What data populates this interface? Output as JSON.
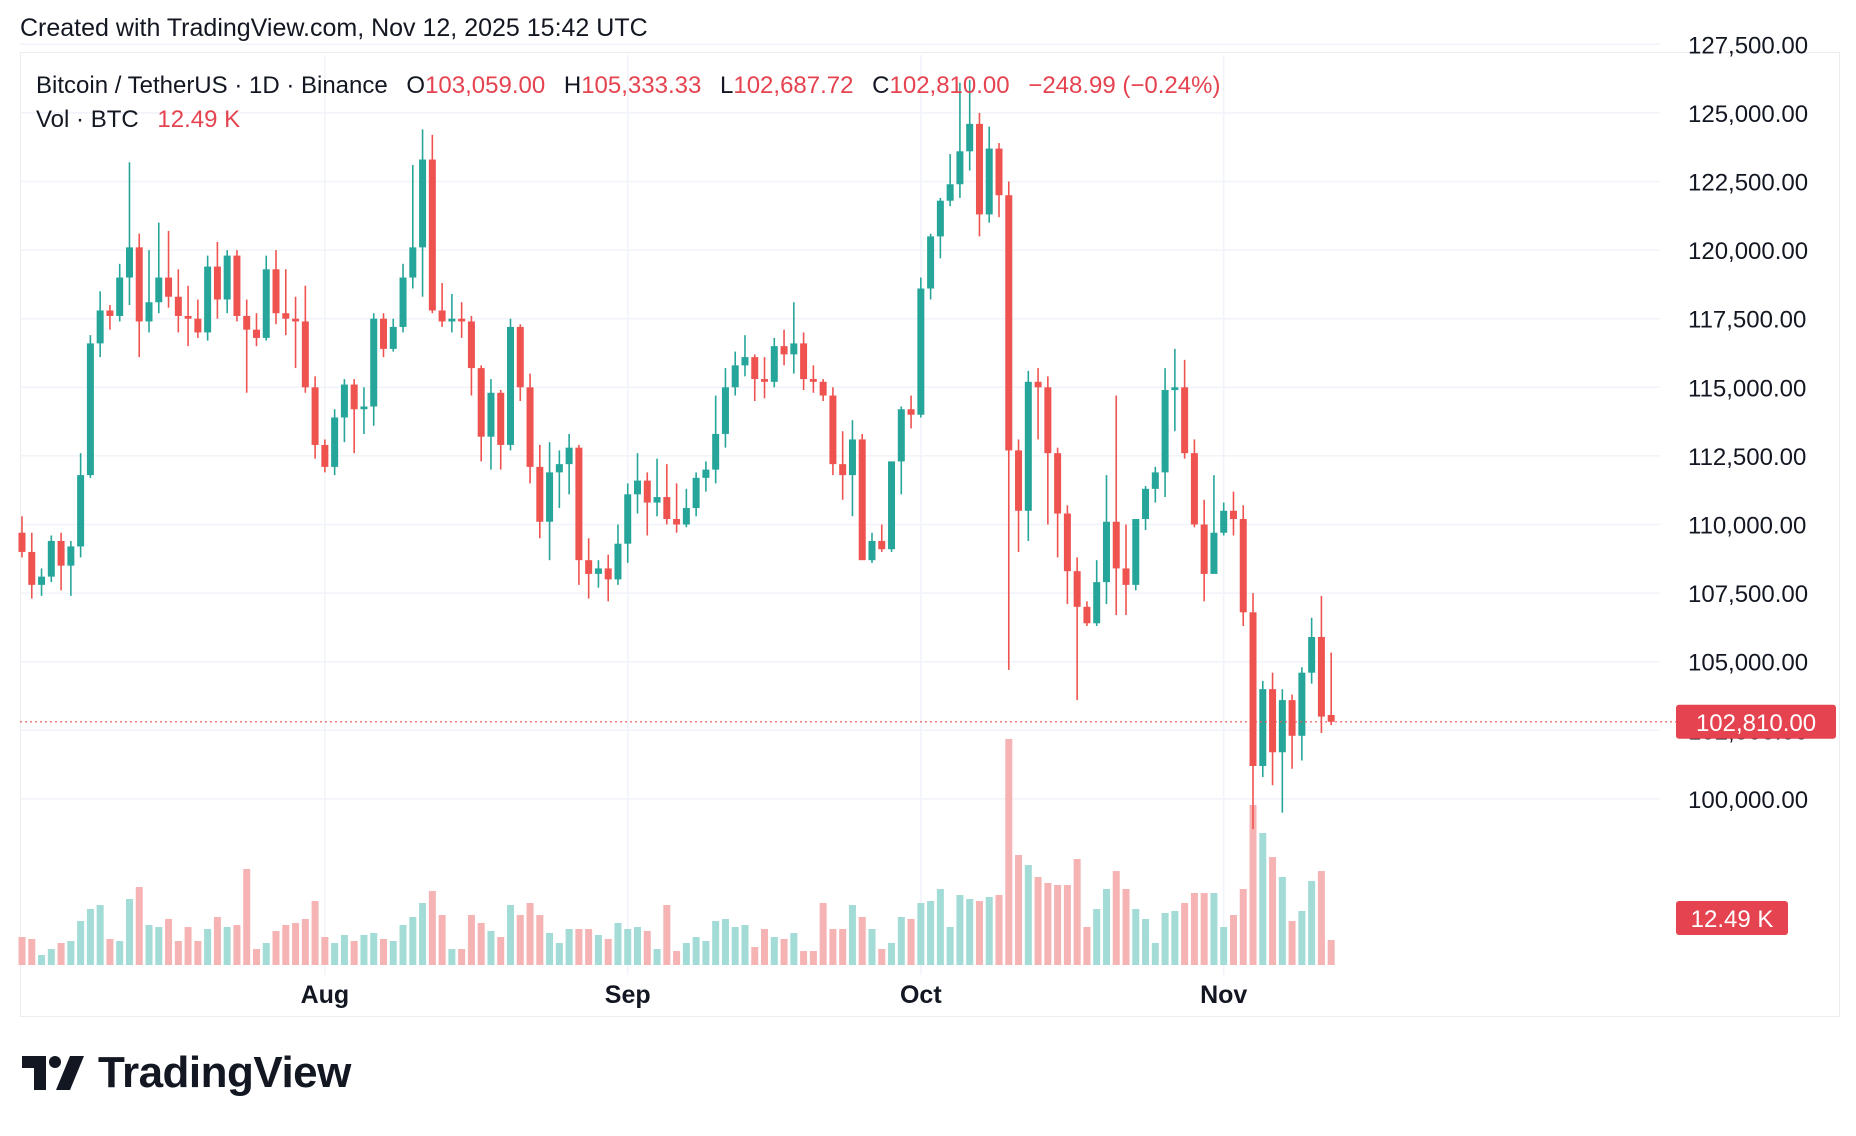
{
  "credit": "Created with TradingView.com, Nov 12, 2025 15:42 UTC",
  "legend": {
    "symbol": "Bitcoin / TetherUS · 1D · Binance",
    "open_label": "O",
    "open": "103,059.00",
    "high_label": "H",
    "high": "105,333.33",
    "low_label": "L",
    "low": "102,687.72",
    "close_label": "C",
    "close": "102,810.00",
    "change": "−248.99 (−0.24%)",
    "vol_label": "Vol · BTC",
    "vol": "12.49 K"
  },
  "brand": {
    "name": "TradingView",
    "icon": "tradingview-logo-icon"
  },
  "colors": {
    "up": "#26a69a",
    "down": "#ef5350",
    "vol_up": "#a3dbd6",
    "vol_down": "#f5b3b3",
    "grid": "#f0f3fa",
    "price_line": "#ef5350"
  },
  "chart_data": {
    "type": "candlestick",
    "symbol": "BTCUSDT",
    "interval": "1D",
    "y_axis": {
      "min": 97500,
      "max": 127500,
      "ticks": [
        100000,
        102500,
        105000,
        107500,
        110000,
        112500,
        115000,
        117500,
        120000,
        122500,
        125000,
        127500
      ]
    },
    "x_labels": [
      {
        "label": "Aug",
        "index": 31
      },
      {
        "label": "Sep",
        "index": 62
      },
      {
        "label": "Oct",
        "index": 92
      },
      {
        "label": "Nov",
        "index": 123
      }
    ],
    "last_price_label": "102,810.00",
    "last_volume_label": "12.49 K",
    "candles": [
      [
        109700,
        110300,
        108800,
        109000,
        14
      ],
      [
        109000,
        109700,
        107300,
        107800,
        13
      ],
      [
        107800,
        108400,
        107400,
        108100,
        5
      ],
      [
        108100,
        109600,
        107900,
        109400,
        8
      ],
      [
        109400,
        109700,
        107600,
        108500,
        11
      ],
      [
        108500,
        109400,
        107400,
        109200,
        12
      ],
      [
        109200,
        112600,
        108800,
        111800,
        22
      ],
      [
        111800,
        116900,
        111700,
        116600,
        28
      ],
      [
        116600,
        118500,
        116100,
        117800,
        30
      ],
      [
        117800,
        118000,
        117100,
        117600,
        13
      ],
      [
        117600,
        119500,
        117400,
        119000,
        12
      ],
      [
        119000,
        123200,
        118000,
        120100,
        33
      ],
      [
        120100,
        120600,
        116100,
        117400,
        39
      ],
      [
        117400,
        120000,
        117000,
        118100,
        20
      ],
      [
        118100,
        121000,
        117700,
        119000,
        19
      ],
      [
        119000,
        120700,
        117900,
        118300,
        23
      ],
      [
        118300,
        119300,
        117000,
        117600,
        12
      ],
      [
        117600,
        118700,
        116500,
        117500,
        19
      ],
      [
        117500,
        118200,
        116800,
        117000,
        12
      ],
      [
        117000,
        119800,
        116700,
        119400,
        18
      ],
      [
        119400,
        120300,
        117500,
        118200,
        24
      ],
      [
        118200,
        120000,
        117700,
        119800,
        19
      ],
      [
        119800,
        120000,
        117400,
        117600,
        20
      ],
      [
        117600,
        118200,
        114800,
        117100,
        48
      ],
      [
        117100,
        117700,
        116500,
        116800,
        8
      ],
      [
        116800,
        119800,
        116700,
        119300,
        11
      ],
      [
        119300,
        120000,
        117300,
        117700,
        17
      ],
      [
        117700,
        119300,
        116900,
        117500,
        20
      ],
      [
        117500,
        118300,
        115700,
        117400,
        21
      ],
      [
        117400,
        118700,
        114800,
        115000,
        23
      ],
      [
        115000,
        115400,
        112400,
        112900,
        32
      ],
      [
        112900,
        113100,
        111900,
        112100,
        14
      ],
      [
        112100,
        114200,
        111800,
        113900,
        11
      ],
      [
        113900,
        115300,
        113000,
        115100,
        15
      ],
      [
        115100,
        115300,
        112600,
        114200,
        12
      ],
      [
        114200,
        115000,
        113300,
        114300,
        15
      ],
      [
        114300,
        117700,
        113600,
        117500,
        16
      ],
      [
        117500,
        117700,
        116100,
        116400,
        13
      ],
      [
        116400,
        117500,
        116300,
        117200,
        12
      ],
      [
        117200,
        119500,
        117000,
        119000,
        20
      ],
      [
        119000,
        123100,
        118600,
        120100,
        24
      ],
      [
        120100,
        124400,
        118300,
        123300,
        31
      ],
      [
        123300,
        124200,
        117700,
        117800,
        37
      ],
      [
        117800,
        118800,
        117200,
        117400,
        25
      ],
      [
        117400,
        118400,
        117000,
        117500,
        8
      ],
      [
        117500,
        118100,
        116800,
        117400,
        8
      ],
      [
        117400,
        117600,
        114700,
        115700,
        25
      ],
      [
        115700,
        115800,
        112300,
        113200,
        21
      ],
      [
        113200,
        115300,
        112000,
        114800,
        17
      ],
      [
        114800,
        114900,
        112000,
        112900,
        14
      ],
      [
        112900,
        117500,
        112700,
        117200,
        30
      ],
      [
        117200,
        117300,
        114500,
        115000,
        25
      ],
      [
        115000,
        115500,
        111500,
        112100,
        31
      ],
      [
        112100,
        112900,
        109500,
        110100,
        25
      ],
      [
        110100,
        113000,
        108700,
        111900,
        16
      ],
      [
        111900,
        112700,
        110600,
        112200,
        11
      ],
      [
        112200,
        113300,
        111100,
        112800,
        18
      ],
      [
        112800,
        112900,
        107800,
        108700,
        18
      ],
      [
        108700,
        109500,
        107300,
        108200,
        18
      ],
      [
        108200,
        108700,
        107700,
        108400,
        15
      ],
      [
        108400,
        108900,
        107200,
        108000,
        13
      ],
      [
        108000,
        110000,
        107800,
        109300,
        21
      ],
      [
        109300,
        111500,
        108600,
        111100,
        18
      ],
      [
        111100,
        112600,
        110400,
        111600,
        19
      ],
      [
        111600,
        111900,
        109600,
        110800,
        17
      ],
      [
        110800,
        112400,
        110300,
        111000,
        8
      ],
      [
        111000,
        112200,
        110000,
        110200,
        30
      ],
      [
        110200,
        111500,
        109700,
        110000,
        7
      ],
      [
        110000,
        111300,
        109900,
        110600,
        11
      ],
      [
        110600,
        111900,
        110300,
        111700,
        14
      ],
      [
        111700,
        112300,
        111200,
        112000,
        12
      ],
      [
        112000,
        114700,
        111500,
        113300,
        22
      ],
      [
        113300,
        115700,
        112800,
        115000,
        23
      ],
      [
        115000,
        116300,
        114700,
        115800,
        19
      ],
      [
        115800,
        116900,
        115400,
        116100,
        20
      ],
      [
        116100,
        116200,
        114500,
        115300,
        9
      ],
      [
        115300,
        116100,
        114600,
        115200,
        18
      ],
      [
        115200,
        116800,
        115000,
        116500,
        14
      ],
      [
        116500,
        117100,
        115800,
        116200,
        13
      ],
      [
        116200,
        118100,
        115500,
        116600,
        16
      ],
      [
        116600,
        117000,
        114900,
        115300,
        7
      ],
      [
        115300,
        115800,
        114800,
        115200,
        7
      ],
      [
        115200,
        115300,
        114500,
        114700,
        31
      ],
      [
        114700,
        115000,
        111800,
        112200,
        18
      ],
      [
        112200,
        113400,
        110900,
        111800,
        18
      ],
      [
        111800,
        113800,
        110300,
        113100,
        30
      ],
      [
        113100,
        113300,
        108900,
        108700,
        24
      ],
      [
        108700,
        109700,
        108600,
        109400,
        18
      ],
      [
        109400,
        110000,
        109000,
        109100,
        8
      ],
      [
        109100,
        112100,
        109000,
        112300,
        11
      ],
      [
        112300,
        114300,
        111100,
        114200,
        24
      ],
      [
        114200,
        114700,
        113500,
        114000,
        23
      ],
      [
        114000,
        119000,
        113900,
        118600,
        31
      ],
      [
        118600,
        120600,
        118200,
        120500,
        32
      ],
      [
        120500,
        121900,
        119700,
        121800,
        38
      ],
      [
        121800,
        123500,
        121600,
        122400,
        19
      ],
      [
        122400,
        126100,
        121900,
        123600,
        35
      ],
      [
        123600,
        126200,
        122900,
        124600,
        33
      ],
      [
        124600,
        125000,
        120500,
        121300,
        32
      ],
      [
        121300,
        124500,
        121000,
        123700,
        34
      ],
      [
        123700,
        123900,
        121200,
        122000,
        35
      ],
      [
        122000,
        122500,
        104700,
        112700,
        113
      ],
      [
        112700,
        113100,
        109000,
        110500,
        55
      ],
      [
        110500,
        115600,
        109400,
        115200,
        50
      ],
      [
        115200,
        115700,
        113100,
        115000,
        44
      ],
      [
        115000,
        115400,
        110000,
        112600,
        41
      ],
      [
        112600,
        112800,
        108800,
        110400,
        40
      ],
      [
        110400,
        110700,
        107100,
        108300,
        40
      ],
      [
        108300,
        108800,
        103600,
        107000,
        53
      ],
      [
        107000,
        107200,
        106300,
        106400,
        19
      ],
      [
        106400,
        108700,
        106300,
        107900,
        28
      ],
      [
        107900,
        111800,
        107100,
        110100,
        38
      ],
      [
        110100,
        114700,
        106700,
        108400,
        47
      ],
      [
        108400,
        110000,
        106700,
        107800,
        38
      ],
      [
        107800,
        110100,
        107600,
        110200,
        28
      ],
      [
        110200,
        111400,
        109800,
        111300,
        23
      ],
      [
        111300,
        112100,
        110800,
        111900,
        11
      ],
      [
        111900,
        115700,
        111000,
        114900,
        26
      ],
      [
        114900,
        116400,
        113400,
        115000,
        27
      ],
      [
        115000,
        116000,
        112400,
        112600,
        31
      ],
      [
        112600,
        113100,
        109900,
        110000,
        36
      ],
      [
        110000,
        110900,
        107200,
        108200,
        36
      ],
      [
        108200,
        111800,
        108300,
        109700,
        36
      ],
      [
        109700,
        110800,
        109600,
        110500,
        19
      ],
      [
        110500,
        111200,
        109600,
        110200,
        25
      ],
      [
        110200,
        110700,
        106300,
        106800,
        38
      ],
      [
        106800,
        107500,
        98900,
        101200,
        80
      ],
      [
        101200,
        104300,
        100800,
        104000,
        66
      ],
      [
        104000,
        104600,
        100500,
        101700,
        54
      ],
      [
        101700,
        104000,
        99500,
        103600,
        44
      ],
      [
        103600,
        103800,
        101100,
        102300,
        22
      ],
      [
        102300,
        104800,
        101400,
        104600,
        27
      ],
      [
        104600,
        106600,
        104200,
        105900,
        42
      ],
      [
        105900,
        107400,
        102400,
        103000,
        47
      ],
      [
        103059,
        105333.33,
        102687.72,
        102810,
        12.49
      ]
    ]
  }
}
